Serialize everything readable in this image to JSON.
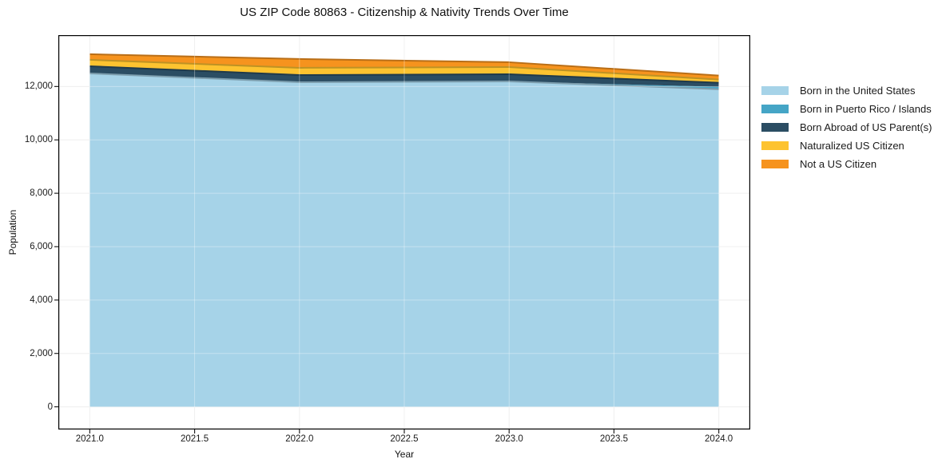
{
  "chart_data": {
    "type": "area",
    "stacked": true,
    "title": "US ZIP Code 80863 - Citizenship & Nativity Trends Over Time",
    "xlabel": "Year",
    "ylabel": "Population",
    "x": [
      2021,
      2022,
      2023,
      2024
    ],
    "series": [
      {
        "name": "Born in the United States",
        "color": "#a6d3e8",
        "values": [
          12490,
          12160,
          12190,
          11900
        ]
      },
      {
        "name": "Born in Puerto Rico / Islands",
        "color": "#45a5c6",
        "values": [
          0,
          0,
          0,
          90
        ]
      },
      {
        "name": "Born Abroad of US Parent(s)",
        "color": "#2b4d63",
        "values": [
          270,
          270,
          270,
          150
        ]
      },
      {
        "name": "Naturalized US Citizen",
        "color": "#fdc330",
        "values": [
          240,
          270,
          270,
          120
        ]
      },
      {
        "name": "Not a US Citizen",
        "color": "#f6931e",
        "values": [
          210,
          330,
          180,
          150
        ]
      }
    ],
    "totals": [
      13210,
      13030,
      12910,
      12410
    ],
    "xlim": [
      2020.85,
      2024.15
    ],
    "ylim": [
      -850,
      13925
    ],
    "x_ticks": [
      {
        "value": 2021.0,
        "label": "2021.0"
      },
      {
        "value": 2021.5,
        "label": "2021.5"
      },
      {
        "value": 2022.0,
        "label": "2022.0"
      },
      {
        "value": 2022.5,
        "label": "2022.5"
      },
      {
        "value": 2023.0,
        "label": "2023.0"
      },
      {
        "value": 2023.5,
        "label": "2023.5"
      },
      {
        "value": 2024.0,
        "label": "2024.0"
      }
    ],
    "y_ticks": [
      {
        "value": 0,
        "label": "0"
      },
      {
        "value": 2000,
        "label": "2,000"
      },
      {
        "value": 4000,
        "label": "4,000"
      },
      {
        "value": 6000,
        "label": "6,000"
      },
      {
        "value": 8000,
        "label": "8,000"
      },
      {
        "value": 10000,
        "label": "10,000"
      },
      {
        "value": 12000,
        "label": "12,000"
      }
    ],
    "grid": true,
    "legend_position": "right",
    "colors": {
      "background": "#ffffff",
      "gridline": "#e9e9e9",
      "spine": "#000000",
      "tick": "#222222",
      "text": "#1a1a1a"
    }
  }
}
